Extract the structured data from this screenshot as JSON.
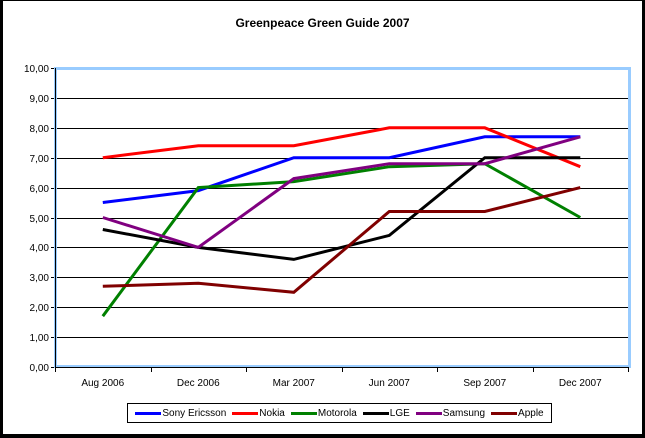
{
  "chart_data": {
    "type": "line",
    "title": "Greenpeace Green Guide 2007",
    "xlabel": "",
    "ylabel": "",
    "ylim": [
      0,
      10
    ],
    "yticks": [
      "0,00",
      "1,00",
      "2,00",
      "3,00",
      "4,00",
      "5,00",
      "6,00",
      "7,00",
      "8,00",
      "9,00",
      "10,00"
    ],
    "grid": true,
    "legend_position": "bottom",
    "categories": [
      "Aug 2006",
      "Dec 2006",
      "Mar 2007",
      "Jun 2007",
      "Sep 2007",
      "Dec 2007"
    ],
    "series": [
      {
        "name": "Sony Ericsson",
        "color": "#0000FF",
        "values": [
          5.5,
          5.9,
          7.0,
          7.0,
          7.7,
          7.7
        ]
      },
      {
        "name": "Nokia",
        "color": "#FF0000",
        "values": [
          7.0,
          7.4,
          7.4,
          8.0,
          8.0,
          6.7
        ]
      },
      {
        "name": "Motorola",
        "color": "#008000",
        "values": [
          1.7,
          6.0,
          6.2,
          6.7,
          6.8,
          5.0
        ]
      },
      {
        "name": "LGE",
        "color": "#000000",
        "values": [
          4.6,
          4.0,
          3.6,
          4.4,
          7.0,
          7.0
        ]
      },
      {
        "name": "Samsung",
        "color": "#800080",
        "values": [
          5.0,
          4.0,
          6.3,
          6.8,
          6.8,
          7.7
        ]
      },
      {
        "name": "Apple",
        "color": "#800000",
        "values": [
          2.7,
          2.8,
          2.5,
          5.2,
          5.2,
          6.0
        ]
      }
    ]
  },
  "style": {
    "plot_border_color": "#99CCFF",
    "frame_color": "#000000",
    "background": "#FFFFFF"
  }
}
